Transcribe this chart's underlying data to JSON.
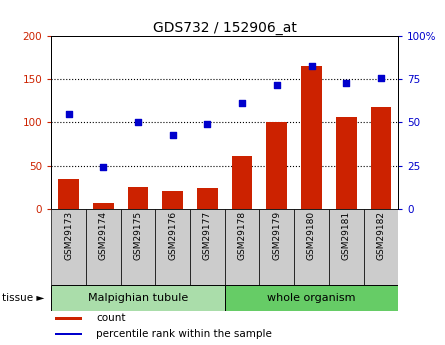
{
  "title": "GDS732 / 152906_at",
  "samples": [
    "GSM29173",
    "GSM29174",
    "GSM29175",
    "GSM29176",
    "GSM29177",
    "GSM29178",
    "GSM29179",
    "GSM29180",
    "GSM29181",
    "GSM29182"
  ],
  "counts": [
    35,
    7,
    25,
    20,
    24,
    61,
    100,
    165,
    106,
    118
  ],
  "percentiles": [
    55,
    24,
    50,
    43,
    49,
    61,
    72,
    83,
    73,
    76
  ],
  "left_ylim": [
    0,
    200
  ],
  "right_ylim": [
    0,
    100
  ],
  "left_yticks": [
    0,
    50,
    100,
    150,
    200
  ],
  "right_yticks": [
    0,
    25,
    50,
    75,
    100
  ],
  "left_yticklabels": [
    "0",
    "50",
    "100",
    "150",
    "200"
  ],
  "right_yticklabels": [
    "0",
    "25",
    "50",
    "75",
    "100%"
  ],
  "bar_color": "#cc2200",
  "dot_color": "#0000cc",
  "plot_bg": "#ffffff",
  "xticklabel_bg": "#cccccc",
  "tissue_groups": [
    {
      "label": "Malpighian tubule",
      "start": 0,
      "end": 5,
      "color": "#aaddaa"
    },
    {
      "label": "whole organism",
      "start": 5,
      "end": 10,
      "color": "#66cc66"
    }
  ],
  "tissue_label": "tissue ►",
  "legend_items": [
    {
      "label": "count",
      "color": "#cc2200"
    },
    {
      "label": "percentile rank within the sample",
      "color": "#0000cc"
    }
  ]
}
